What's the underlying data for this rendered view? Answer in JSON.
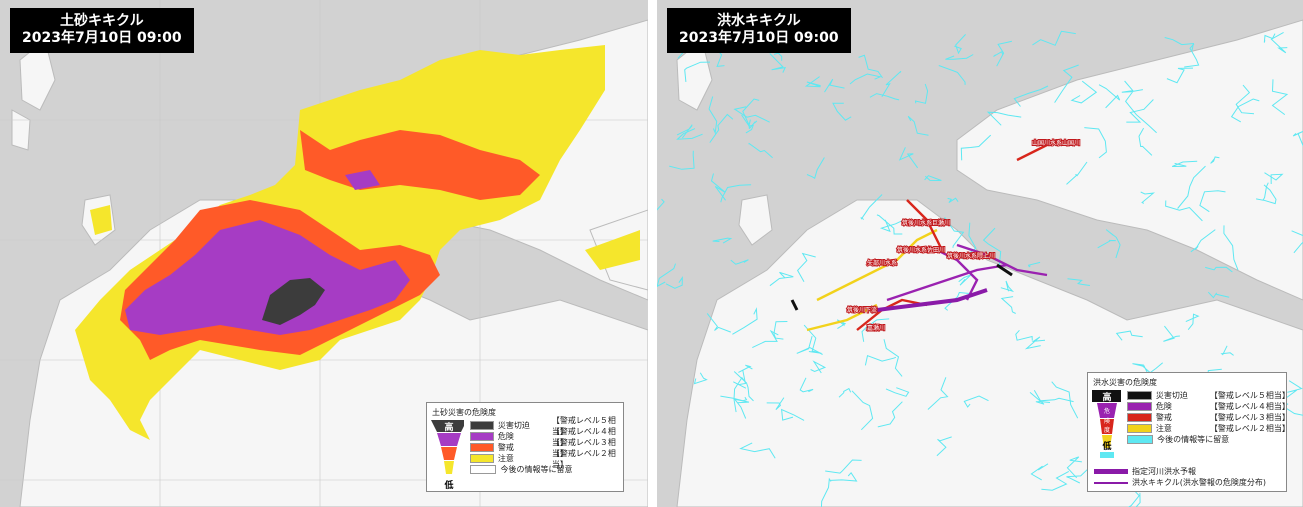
{
  "left": {
    "title": "土砂キキクル",
    "datetime": "2023年7月10日 09:00",
    "legend": {
      "heading": "土砂災害の危険度",
      "high": "高",
      "low": "低",
      "items": [
        {
          "color": "#3c3c3c",
          "label": "災害切迫",
          "level": "【警戒レベル５相当】"
        },
        {
          "color": "#a63cc4",
          "label": "危険",
          "level": "【警戒レベル４相当】"
        },
        {
          "color": "#ff5a28",
          "label": "警戒",
          "level": "【警戒レベル３相当】"
        },
        {
          "color": "#f5e62c",
          "label": "注意",
          "level": "【警戒レベル２相当】"
        },
        {
          "color": "#ffffff",
          "label": "今後の情報等に留意",
          "level": ""
        }
      ]
    }
  },
  "right": {
    "title": "洪水キキクル",
    "datetime": "2023年7月10日 09:00",
    "legend": {
      "heading": "洪水災害の危険度",
      "high": "高",
      "low": "低",
      "scale_labels": [
        "危",
        "険",
        "度"
      ],
      "items": [
        {
          "color": "#111111",
          "label": "災害切迫",
          "level": "【警戒レベル５相当】"
        },
        {
          "color": "#9a22b0",
          "label": "危険",
          "level": "【警戒レベル４相当】"
        },
        {
          "color": "#d8261c",
          "label": "警戒",
          "level": "【警戒レベル３相当】"
        },
        {
          "color": "#f2d21c",
          "label": "注意",
          "level": "【警戒レベル２相当】"
        },
        {
          "color": "#5ee8f2",
          "label": "今後の情報等に留意",
          "level": ""
        }
      ],
      "extra": [
        {
          "color": "#8a1aa8",
          "label": "指定河川洪水予報"
        },
        {
          "color": "#8a1aa8",
          "label": "洪水キキクル(洪水警報の危険度分布)"
        }
      ]
    },
    "river_labels": [
      "筑後川水系巨瀬川",
      "筑後川水系佐田川",
      "筑後川水系隈上川",
      "矢部川水系",
      "筑後川下流",
      "嘉瀬川",
      "山国川水系山国川"
    ]
  },
  "colors": {
    "sea": "#d2d2d2",
    "land": "#f7f7f7",
    "river": "#5ee8f2"
  }
}
